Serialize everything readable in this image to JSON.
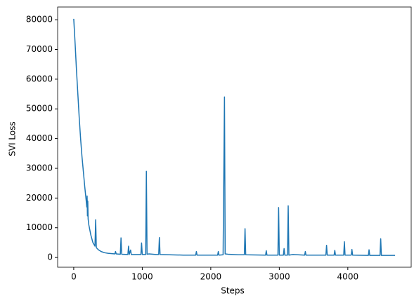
{
  "chart_data": {
    "type": "line",
    "x_label": "Steps",
    "y_label": "SVI Loss",
    "x": [
      0,
      20,
      40,
      60,
      80,
      100,
      120,
      140,
      160,
      180,
      190,
      195,
      200,
      205,
      210,
      220,
      250,
      280,
      310,
      320,
      330,
      360,
      400,
      450,
      500,
      600,
      610,
      620,
      680,
      690,
      700,
      790,
      800,
      810,
      830,
      840,
      980,
      990,
      1000,
      1050,
      1060,
      1070,
      1100,
      1200,
      1240,
      1250,
      1260,
      1400,
      1600,
      1780,
      1790,
      1800,
      2000,
      2100,
      2110,
      2120,
      2180,
      2200,
      2210,
      2250,
      2400,
      2490,
      2500,
      2510,
      2800,
      2810,
      2820,
      2980,
      2990,
      3000,
      3060,
      3070,
      3080,
      3120,
      3130,
      3140,
      3200,
      3370,
      3380,
      3390,
      3680,
      3690,
      3700,
      3800,
      3810,
      3820,
      3940,
      3950,
      3960,
      4050,
      4060,
      4070,
      4300,
      4310,
      4320,
      4470,
      4480,
      4490,
      4690
    ],
    "series": [
      {
        "color": "#1f77b4",
        "values": [
          80300,
          72000,
          63000,
          55000,
          47000,
          40000,
          34000,
          29000,
          24000,
          19500,
          17000,
          20700,
          14000,
          19000,
          13000,
          11000,
          7500,
          5000,
          3800,
          12700,
          3300,
          2600,
          2000,
          1600,
          1400,
          1200,
          2000,
          1200,
          1100,
          6600,
          1100,
          1000,
          3800,
          1000,
          2500,
          1000,
          1000,
          4900,
          1000,
          1000,
          29000,
          1100,
          1200,
          1000,
          1000,
          6700,
          1000,
          900,
          800,
          800,
          2000,
          800,
          800,
          800,
          2000,
          800,
          900,
          54000,
          1200,
          1100,
          900,
          900,
          9700,
          900,
          800,
          2300,
          800,
          800,
          16800,
          800,
          800,
          3000,
          800,
          800,
          17400,
          800,
          1000,
          800,
          2000,
          800,
          800,
          4100,
          800,
          800,
          2400,
          800,
          800,
          5300,
          800,
          800,
          2700,
          800,
          700,
          2600,
          700,
          700,
          6300,
          700,
          700
        ]
      }
    ],
    "xlim": [
      -235,
      4925
    ],
    "ylim": [
      -3280,
      84280
    ],
    "xticks": [
      0,
      1000,
      2000,
      3000,
      4000
    ],
    "yticks": [
      0,
      10000,
      20000,
      30000,
      40000,
      50000,
      60000,
      70000,
      80000
    ]
  }
}
